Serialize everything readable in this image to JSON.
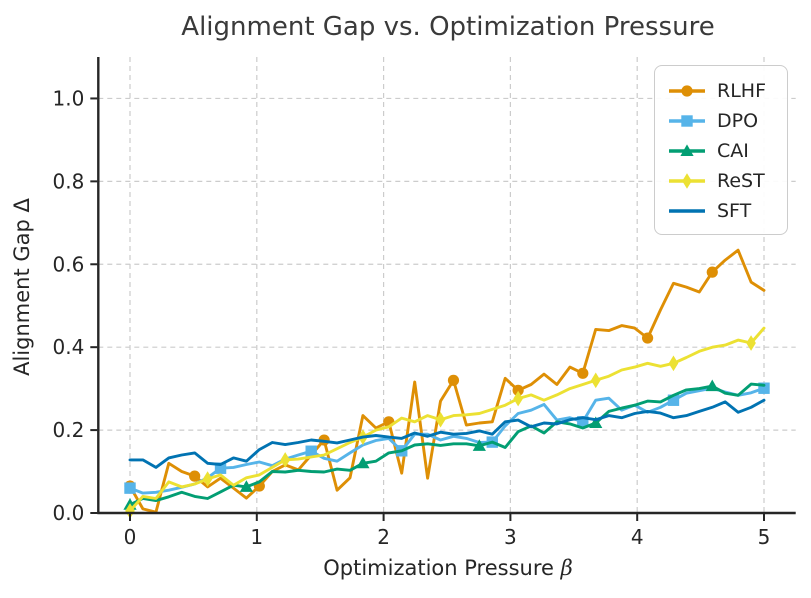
{
  "figure": {
    "title": "Alignment Gap vs. Optimization Pressure",
    "xlabel_main": "Optimization Pressure ",
    "xlabel_symbol": "β",
    "ylabel": "Alignment Gap Δ"
  },
  "chart_data": {
    "type": "line",
    "title": "Alignment Gap vs. Optimization Pressure",
    "xlabel": "Optimization Pressure β",
    "ylabel": "Alignment Gap Δ",
    "xlim": [
      -0.25,
      5.25
    ],
    "ylim": [
      0,
      1.1
    ],
    "xticks": [
      0,
      1,
      2,
      3,
      4,
      5
    ],
    "yticks": [
      0.0,
      0.2,
      0.4,
      0.6,
      0.8,
      1.0
    ],
    "xtick_labels": [
      "0",
      "1",
      "2",
      "3",
      "4",
      "5"
    ],
    "ytick_labels": [
      "0.0",
      "0.2",
      "0.4",
      "0.6",
      "0.8",
      "1.0"
    ],
    "grid": true,
    "grid_style": "dashed",
    "grid_color": "#cccccc",
    "legend_position": "upper right",
    "x": [
      0.0,
      0.102,
      0.204,
      0.306,
      0.408,
      0.51,
      0.612,
      0.714,
      0.816,
      0.918,
      1.02,
      1.122,
      1.224,
      1.327,
      1.429,
      1.531,
      1.633,
      1.735,
      1.837,
      1.939,
      2.041,
      2.143,
      2.245,
      2.347,
      2.449,
      2.551,
      2.653,
      2.755,
      2.857,
      2.959,
      3.061,
      3.163,
      3.265,
      3.367,
      3.469,
      3.571,
      3.673,
      3.776,
      3.878,
      3.98,
      4.082,
      4.184,
      4.286,
      4.388,
      4.49,
      4.592,
      4.694,
      4.796,
      4.898,
      5.0
    ],
    "series": [
      {
        "name": "RLHF",
        "color": "#de8f05",
        "marker": "circle",
        "marker_every": 5,
        "values": [
          0.065,
          0.01,
          0.002,
          0.12,
          0.1,
          0.089,
          0.063,
          0.084,
          0.06,
          0.036,
          0.065,
          0.1,
          0.116,
          0.104,
          0.14,
          0.176,
          0.055,
          0.085,
          0.235,
          0.205,
          0.22,
          0.096,
          0.316,
          0.084,
          0.27,
          0.32,
          0.212,
          0.217,
          0.22,
          0.325,
          0.296,
          0.31,
          0.335,
          0.31,
          0.352,
          0.337,
          0.443,
          0.44,
          0.452,
          0.446,
          0.422,
          0.49,
          0.554,
          0.545,
          0.533,
          0.581,
          0.61,
          0.634,
          0.557,
          0.537
        ]
      },
      {
        "name": "DPO",
        "color": "#56b4e9",
        "marker": "square",
        "marker_every": 7,
        "values": [
          0.06,
          0.048,
          0.05,
          0.055,
          0.062,
          0.07,
          0.085,
          0.108,
          0.11,
          0.117,
          0.123,
          0.114,
          0.13,
          0.14,
          0.149,
          0.132,
          0.125,
          0.145,
          0.164,
          0.175,
          0.18,
          0.15,
          0.19,
          0.19,
          0.176,
          0.185,
          0.18,
          0.17,
          0.171,
          0.21,
          0.24,
          0.248,
          0.262,
          0.224,
          0.23,
          0.22,
          0.272,
          0.277,
          0.248,
          0.26,
          0.243,
          0.255,
          0.272,
          0.289,
          0.295,
          0.301,
          0.292,
          0.284,
          0.29,
          0.301
        ]
      },
      {
        "name": "CAI",
        "color": "#029e73",
        "marker": "triangle",
        "marker_every": 9,
        "values": [
          0.02,
          0.035,
          0.03,
          0.039,
          0.05,
          0.04,
          0.035,
          0.051,
          0.067,
          0.063,
          0.075,
          0.1,
          0.099,
          0.103,
          0.1,
          0.099,
          0.106,
          0.103,
          0.12,
          0.125,
          0.145,
          0.15,
          0.164,
          0.167,
          0.163,
          0.167,
          0.167,
          0.162,
          0.171,
          0.158,
          0.196,
          0.21,
          0.193,
          0.22,
          0.215,
          0.205,
          0.217,
          0.245,
          0.253,
          0.26,
          0.27,
          0.268,
          0.284,
          0.297,
          0.3,
          0.306,
          0.289,
          0.284,
          0.311,
          0.308
        ]
      },
      {
        "name": "ReST",
        "color": "#ece133",
        "marker": "diamond",
        "marker_every": 6,
        "values": [
          0.005,
          0.04,
          0.035,
          0.075,
          0.063,
          0.07,
          0.082,
          0.092,
          0.067,
          0.085,
          0.092,
          0.11,
          0.128,
          0.13,
          0.135,
          0.14,
          0.155,
          0.17,
          0.183,
          0.2,
          0.208,
          0.229,
          0.22,
          0.235,
          0.225,
          0.235,
          0.237,
          0.24,
          0.25,
          0.26,
          0.276,
          0.285,
          0.272,
          0.285,
          0.3,
          0.31,
          0.32,
          0.33,
          0.345,
          0.352,
          0.361,
          0.354,
          0.361,
          0.375,
          0.39,
          0.4,
          0.405,
          0.417,
          0.41,
          0.446
        ]
      },
      {
        "name": "SFT",
        "color": "#0173b2",
        "marker": "none",
        "marker_every": 0,
        "values": [
          0.128,
          0.128,
          0.11,
          0.133,
          0.14,
          0.145,
          0.12,
          0.117,
          0.133,
          0.125,
          0.153,
          0.17,
          0.165,
          0.17,
          0.176,
          0.173,
          0.169,
          0.176,
          0.183,
          0.187,
          0.183,
          0.18,
          0.193,
          0.185,
          0.195,
          0.19,
          0.192,
          0.198,
          0.19,
          0.22,
          0.224,
          0.208,
          0.217,
          0.215,
          0.225,
          0.23,
          0.225,
          0.235,
          0.23,
          0.24,
          0.245,
          0.241,
          0.23,
          0.235,
          0.245,
          0.255,
          0.268,
          0.243,
          0.255,
          0.272
        ]
      }
    ]
  },
  "style": {
    "spine_color": "#262626",
    "tick_color": "#262626",
    "text_color": "#262626"
  }
}
